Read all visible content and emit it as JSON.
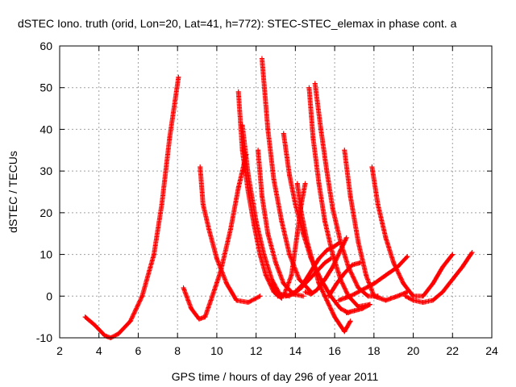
{
  "chart_data": {
    "type": "scatter",
    "title": "dSTEC Iono. truth (orid, Lon=20, Lat=41, h=772): STEC-STEC_elemax in phase cont. a",
    "xlabel": "GPS time / hours of day 296 of year 2011",
    "ylabel": "dSTEC  / TECUs",
    "xlim": [
      2,
      24
    ],
    "ylim": [
      -10,
      60
    ],
    "xticks": [
      2,
      4,
      6,
      8,
      10,
      12,
      14,
      16,
      18,
      20,
      22,
      24
    ],
    "yticks": [
      -10,
      0,
      10,
      20,
      30,
      40,
      50,
      60
    ],
    "grid": true,
    "marker": "+",
    "color": "#ff0000",
    "series": [
      {
        "x": [
          3.3,
          3.8,
          4.3,
          4.6,
          5.0,
          5.6,
          6.2,
          6.8,
          7.2,
          7.6,
          8.05
        ],
        "y": [
          -5,
          -7,
          -9.5,
          -10,
          -9,
          -6,
          0,
          10,
          22,
          38,
          52.5
        ]
      },
      {
        "x": [
          8.3,
          8.7,
          9.1,
          9.4,
          9.7,
          10.2,
          10.7,
          11.1,
          11.5
        ],
        "y": [
          2,
          -3,
          -5.5,
          -5,
          -1,
          6,
          16,
          26,
          34
        ]
      },
      {
        "x": [
          9.15,
          9.3,
          9.6,
          10.0,
          10.5,
          11.0,
          11.6,
          12.2
        ],
        "y": [
          31,
          22,
          16,
          9,
          3,
          -1,
          -1.5,
          0
        ]
      },
      {
        "x": [
          11.1,
          11.3,
          11.6,
          11.9,
          12.2,
          12.5,
          12.9,
          13.3
        ],
        "y": [
          49,
          35,
          25,
          17,
          10,
          5,
          1,
          -0.5
        ]
      },
      {
        "x": [
          11.3,
          11.6,
          12.0,
          12.4,
          12.8,
          13.2,
          13.7
        ],
        "y": [
          41,
          29,
          18,
          10,
          4,
          0.5,
          0
        ]
      },
      {
        "x": [
          12.1,
          12.3,
          12.6,
          13.0,
          13.4,
          13.9,
          14.4
        ],
        "y": [
          35,
          24,
          15,
          8,
          3,
          0.5,
          0
        ]
      },
      {
        "x": [
          12.3,
          12.6,
          12.9,
          13.3,
          13.7,
          14.2,
          14.8
        ],
        "y": [
          57,
          40,
          28,
          18,
          10,
          4,
          1
        ]
      },
      {
        "x": [
          13.4,
          13.7,
          14.0,
          14.4,
          14.8,
          15.3,
          15.8,
          16.3,
          16.7
        ],
        "y": [
          39,
          29,
          22,
          15,
          9,
          4,
          0,
          -3,
          -4
        ]
      },
      {
        "x": [
          12.8,
          13.1,
          13.4,
          13.8,
          14.1,
          14.3,
          14.5
        ],
        "y": [
          3,
          0,
          0,
          5,
          15,
          22,
          27
        ]
      },
      {
        "x": [
          14.1,
          14.3,
          14.6,
          14.9,
          15.2,
          15.6,
          16.0,
          16.5,
          16.8
        ],
        "y": [
          27,
          20,
          13,
          8,
          3,
          -1,
          -5,
          -8.5,
          -6
        ]
      },
      {
        "x": [
          14.7,
          14.9,
          15.2,
          15.5,
          15.9,
          16.3,
          16.7,
          17.2,
          17.8
        ],
        "y": [
          50,
          38,
          27,
          18,
          10,
          4,
          0,
          -2.5,
          -2
        ]
      },
      {
        "x": [
          15.0,
          15.3,
          15.6,
          15.9,
          16.3,
          16.7,
          17.2,
          17.7,
          18.2
        ],
        "y": [
          51,
          40,
          30,
          21,
          13,
          7,
          2,
          0,
          0
        ]
      },
      {
        "x": [
          14.5,
          14.8,
          15.1,
          15.5,
          15.9,
          16.3,
          16.6
        ],
        "y": [
          1,
          0.5,
          1.5,
          4,
          7,
          11,
          14
        ]
      },
      {
        "x": [
          13.7,
          14.0,
          14.4,
          14.8,
          15.2,
          15.6,
          16.0,
          16.3
        ],
        "y": [
          0.5,
          1,
          3,
          6,
          9,
          11,
          12,
          13
        ]
      },
      {
        "x": [
          13.5,
          13.9,
          14.3,
          14.7,
          15.1,
          15.5,
          15.8
        ],
        "y": [
          0,
          0.5,
          2,
          4,
          6,
          8,
          9
        ]
      },
      {
        "x": [
          15.7,
          16.1,
          16.5,
          16.9,
          17.3
        ],
        "y": [
          0,
          3,
          5.5,
          7.5,
          8
        ]
      },
      {
        "x": [
          16.5,
          16.8,
          17.2,
          17.6,
          18.0,
          18.6,
          19.2,
          19.7
        ],
        "y": [
          35,
          24,
          13,
          5,
          0,
          -1,
          0,
          1
        ]
      },
      {
        "x": [
          17.9,
          18.2,
          18.6,
          19.0,
          19.5,
          20.0,
          20.5,
          21.0,
          21.5,
          22.0
        ],
        "y": [
          31,
          22,
          14,
          8,
          3,
          0,
          0,
          3,
          7,
          10
        ]
      },
      {
        "x": [
          16.2,
          16.8,
          17.4,
          18.0,
          18.6,
          19.2,
          19.7
        ],
        "y": [
          -1,
          0,
          1.5,
          3,
          5,
          7,
          9.5
        ]
      },
      {
        "x": [
          19.6,
          20.0,
          20.5,
          21.0,
          21.5,
          22.0,
          22.5,
          23.0
        ],
        "y": [
          0,
          -1,
          -1.5,
          -1,
          1,
          4,
          7,
          10.5
        ]
      },
      {
        "x": [
          16.6,
          17.0,
          17.4,
          17.8
        ],
        "y": [
          -4,
          -3.5,
          -3,
          -2
        ]
      }
    ]
  }
}
